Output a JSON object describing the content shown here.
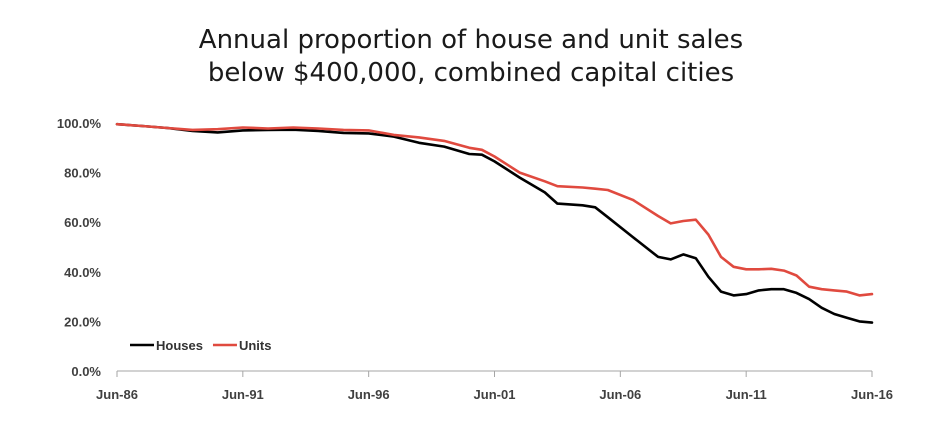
{
  "chart_data": {
    "type": "line",
    "title_lines": [
      "Annual proportion of house and unit sales",
      "below $400,000, combined capital cities"
    ],
    "xlabel": "",
    "ylabel": "",
    "x_ticks": [
      "Jun-86",
      "Jun-91",
      "Jun-96",
      "Jun-01",
      "Jun-06",
      "Jun-11",
      "Jun-16"
    ],
    "y_ticks": [
      "0.0%",
      "20.0%",
      "40.0%",
      "60.0%",
      "80.0%",
      "100.0%"
    ],
    "xlim": [
      1986.5,
      2016.5
    ],
    "ylim": [
      0,
      100
    ],
    "grid": false,
    "legend_position": "bottom-left",
    "series": [
      {
        "name": "Houses",
        "color": "#000000",
        "x": [
          1986.5,
          1987.5,
          1988.5,
          1989.5,
          1990.5,
          1991.5,
          1992.5,
          1993.5,
          1994.5,
          1995.5,
          1996.5,
          1997.5,
          1998.5,
          1999.5,
          2000.5,
          2001.0,
          2001.5,
          2002.5,
          2003.5,
          2004.0,
          2005.0,
          2005.5,
          2006.0,
          2007.0,
          2008.0,
          2008.5,
          2009.0,
          2009.5,
          2010.0,
          2010.5,
          2011.0,
          2011.5,
          2012.0,
          2012.5,
          2013.0,
          2013.5,
          2014.0,
          2014.5,
          2015.0,
          2015.5,
          2016.0,
          2016.5
        ],
        "values": [
          99.5,
          98.8,
          98.0,
          96.8,
          96.2,
          97.0,
          97.2,
          97.3,
          96.8,
          96.0,
          95.8,
          94.5,
          92.0,
          90.5,
          87.5,
          87.2,
          84.5,
          78.0,
          72.0,
          67.5,
          66.8,
          66.0,
          62.0,
          54.0,
          46.0,
          45.0,
          47.0,
          45.5,
          38.0,
          32.0,
          30.5,
          31.0,
          32.5,
          33.0,
          33.0,
          31.5,
          29.0,
          25.5,
          23.0,
          21.5,
          20.0,
          19.5
        ]
      },
      {
        "name": "Units",
        "color": "#e04a3f",
        "x": [
          1986.5,
          1987.5,
          1988.5,
          1989.5,
          1990.5,
          1991.5,
          1992.5,
          1993.5,
          1994.5,
          1995.5,
          1996.5,
          1997.5,
          1998.5,
          1999.5,
          2000.5,
          2001.0,
          2001.5,
          2002.5,
          2003.5,
          2004.0,
          2005.0,
          2005.5,
          2006.0,
          2007.0,
          2008.0,
          2008.5,
          2009.0,
          2009.5,
          2010.0,
          2010.5,
          2011.0,
          2011.5,
          2012.0,
          2012.5,
          2013.0,
          2013.5,
          2014.0,
          2014.5,
          2015.0,
          2015.5,
          2016.0,
          2016.5
        ],
        "values": [
          99.5,
          98.8,
          98.0,
          97.2,
          97.5,
          98.2,
          97.8,
          98.2,
          97.8,
          97.2,
          97.0,
          95.2,
          94.2,
          92.8,
          90.0,
          89.2,
          86.5,
          80.0,
          76.5,
          74.5,
          74.0,
          73.5,
          73.0,
          69.0,
          62.5,
          59.5,
          60.5,
          61.0,
          55.0,
          46.0,
          42.0,
          41.0,
          41.0,
          41.2,
          40.5,
          38.5,
          34.0,
          33.0,
          32.5,
          32.0,
          30.5,
          31.0
        ]
      }
    ]
  }
}
